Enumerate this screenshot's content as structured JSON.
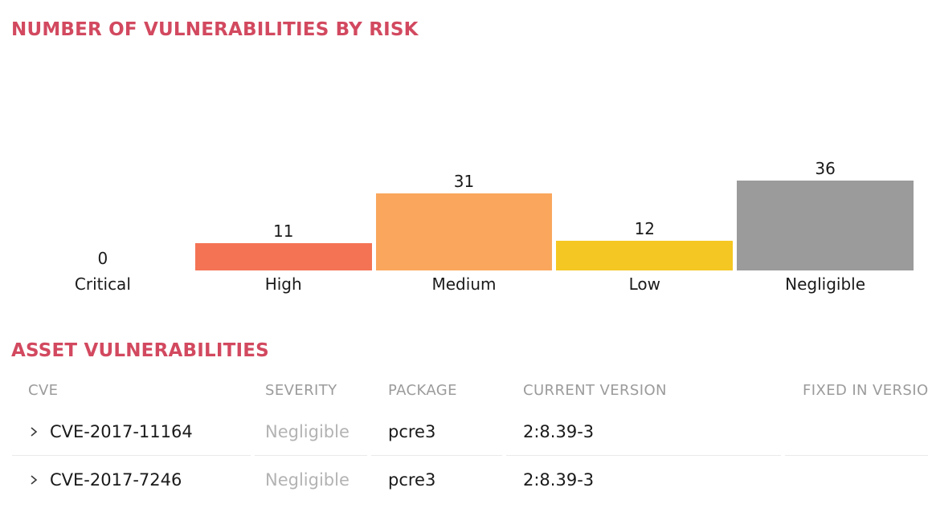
{
  "chart": {
    "title": "NUMBER OF VULNERABILITIES BY RISK"
  },
  "chart_data": {
    "type": "bar",
    "title": "NUMBER OF VULNERABILITIES BY RISK",
    "categories": [
      "Critical",
      "High",
      "Medium",
      "Low",
      "Negligible"
    ],
    "values": [
      0,
      11,
      31,
      12,
      36
    ],
    "colors": [
      "transparent",
      "#f47354",
      "#faa65c",
      "#f5c722",
      "#9b9b9b"
    ],
    "value_labels_shown": true,
    "axes_shown": false,
    "grid": false,
    "legend": "none",
    "ylim": [
      0,
      36
    ]
  },
  "table": {
    "title": "ASSET VULNERABILITIES",
    "columns": [
      "CVE",
      "SEVERITY",
      "PACKAGE",
      "CURRENT VERSION",
      "FIXED IN VERSION"
    ],
    "rows": [
      {
        "cve": "CVE-2017-11164",
        "severity": "Negligible",
        "package": "pcre3",
        "current_version": "2:8.39-3",
        "fixed_in_version": ""
      },
      {
        "cve": "CVE-2017-7246",
        "severity": "Negligible",
        "package": "pcre3",
        "current_version": "2:8.39-3",
        "fixed_in_version": ""
      }
    ]
  },
  "colors": {
    "section_title": "#d2495f",
    "table_header_text": "#9b9b9b",
    "severity_negligible_text": "#b3b3b3",
    "body_text": "#1a1a1a",
    "row_divider": "#eaeaea"
  }
}
